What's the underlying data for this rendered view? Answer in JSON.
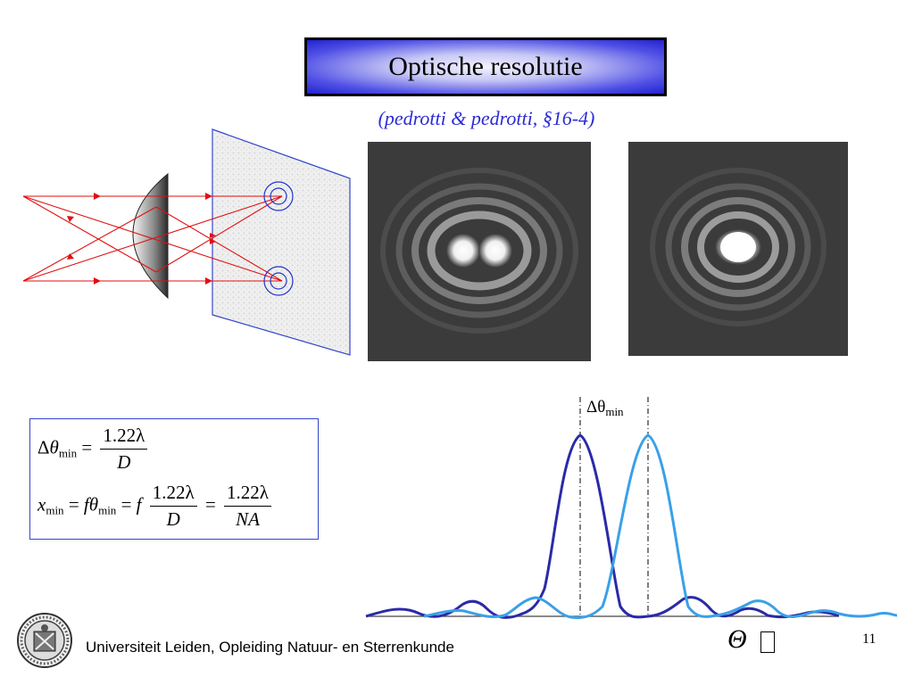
{
  "title": "Optische resolutie",
  "subtitle": "(pedrotti & pedrotti, §16-4)",
  "formulas": {
    "delta": "Δ",
    "theta": "θ",
    "min": "min",
    "eq": "=",
    "numerator": "1.22λ",
    "denominator_d": "D",
    "denominator_na": "NA",
    "x": "x",
    "f": "f"
  },
  "plot": {
    "label_main": "Δθ",
    "label_sub": "min",
    "axis_symbol": "Θ",
    "colors": {
      "curve1": "#2a2aa8",
      "curve2": "#3aa0e8",
      "axis": "#444444"
    }
  },
  "diagram": {
    "ray_color": "#e01010",
    "circle_color": "#2233cc",
    "lens": "lens",
    "screen": "screen"
  },
  "footer": {
    "institution": "Universiteit Leiden, Opleiding Natuur- en Sterrenkunde",
    "page_number": "11"
  },
  "logo": {
    "alt": "Universiteit Leiden seal"
  }
}
